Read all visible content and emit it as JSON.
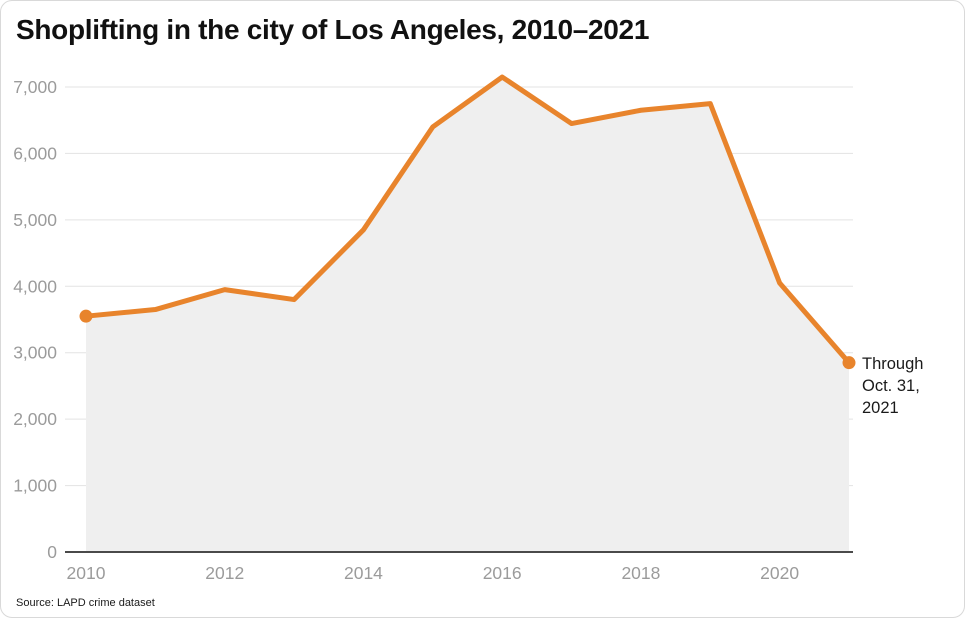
{
  "title": "Shoplifting in the city of Los Angeles, 2010–2021",
  "annotation": "Through Oct. 31, 2021",
  "source": "Source: LAPD crime dataset",
  "chart_data": {
    "type": "line",
    "title": "Shoplifting in the city of Los Angeles, 2010–2021",
    "x": [
      2010,
      2011,
      2012,
      2013,
      2014,
      2015,
      2016,
      2017,
      2018,
      2019,
      2020,
      2021
    ],
    "values": [
      3550,
      3650,
      3950,
      3800,
      4850,
      6400,
      7150,
      6450,
      6650,
      6750,
      4050,
      2850
    ],
    "xlabel": "",
    "ylabel": "",
    "ylim": [
      0,
      7000
    ],
    "yticks": [
      0,
      1000,
      2000,
      3000,
      4000,
      5000,
      6000,
      7000
    ],
    "xticks": [
      2010,
      2012,
      2014,
      2016,
      2018,
      2020
    ],
    "grid": true,
    "legend": "none",
    "area_fill": true,
    "endpoint_markers": [
      2010,
      2021
    ],
    "annotation": "Through Oct. 31, 2021",
    "colors": {
      "line": "#E8842C",
      "area": "#EFEFEF",
      "axis_label": "#9B9B9B",
      "grid": "#E3E3E3",
      "baseline": "#4A4A4A"
    }
  }
}
